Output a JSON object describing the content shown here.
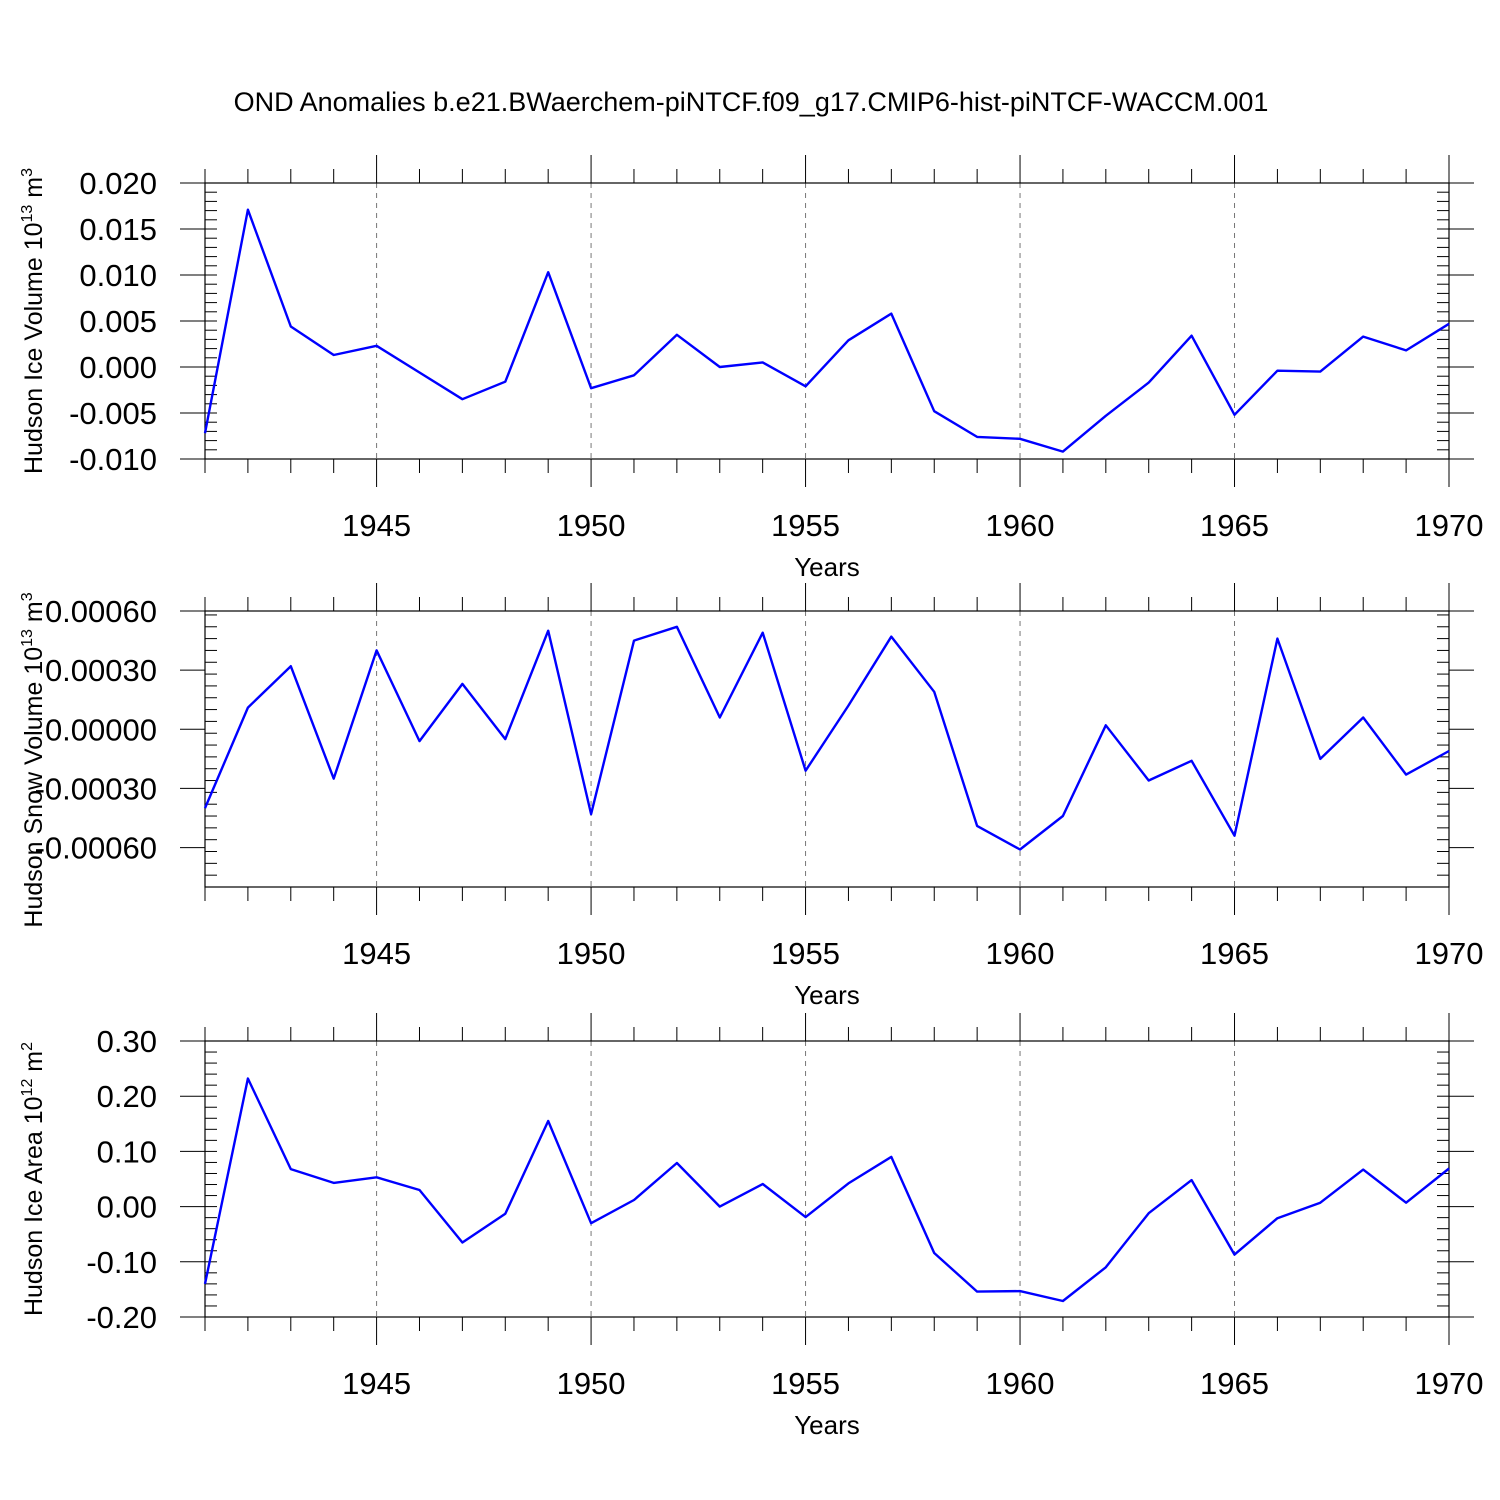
{
  "title": "OND Anomalies b.e21.BWaerchem-piNTCF.f09_g17.CMIP6-hist-piNTCF-WACCM.001",
  "line_color": "#0000ff",
  "chart_data": [
    {
      "type": "line",
      "xlabel": "Years",
      "ylabel": "Hudson Ice Volume 10",
      "ylabel_sup": "13",
      "ylabel_unit": " m",
      "ylabel_unit_sup": "3",
      "xlim": [
        1941,
        1970
      ],
      "ylim": [
        -0.01,
        0.02
      ],
      "yticks": [
        -0.01,
        -0.005,
        0.0,
        0.005,
        0.01,
        0.015,
        0.02
      ],
      "ytick_labels": [
        "-0.010",
        "-0.005",
        "0.000",
        "0.005",
        "0.010",
        "0.015",
        "0.020"
      ],
      "xticks": [
        1945,
        1950,
        1955,
        1960,
        1965,
        1970
      ],
      "xtick_labels": [
        "1945",
        "1950",
        "1955",
        "1960",
        "1965",
        "1970"
      ],
      "x": [
        1941,
        1942,
        1943,
        1944,
        1945,
        1946,
        1947,
        1948,
        1949,
        1950,
        1951,
        1952,
        1953,
        1954,
        1955,
        1956,
        1957,
        1958,
        1959,
        1960,
        1961,
        1962,
        1963,
        1964,
        1965,
        1966,
        1967,
        1968,
        1969,
        1970
      ],
      "series": [
        {
          "values": [
            -0.0072,
            0.0171,
            0.0044,
            0.0013,
            0.0023,
            -0.0006,
            -0.0035,
            -0.0016,
            0.0103,
            -0.0023,
            -0.0009,
            0.0035,
            0.0,
            0.0005,
            -0.0021,
            0.0029,
            0.0058,
            -0.0048,
            -0.0076,
            -0.0078,
            -0.0092,
            -0.0053,
            -0.0017,
            0.0034,
            -0.0052,
            -0.0004,
            -0.0005,
            0.0033,
            0.0018,
            0.0047
          ]
        }
      ]
    },
    {
      "type": "line",
      "xlabel": "Years",
      "ylabel": "Hudson Snow Volume 10",
      "ylabel_sup": "13",
      "ylabel_unit": " m",
      "ylabel_unit_sup": "3",
      "xlim": [
        1941,
        1970
      ],
      "ylim": [
        -0.0008,
        0.0006
      ],
      "yticks": [
        -0.0006,
        -0.0003,
        0.0,
        0.0003,
        0.0006
      ],
      "ytick_labels": [
        "-0.00060",
        "-0.00030",
        "0.00000",
        "0.00030",
        "0.00060"
      ],
      "xticks": [
        1945,
        1950,
        1955,
        1960,
        1965,
        1970
      ],
      "xtick_labels": [
        "1945",
        "1950",
        "1955",
        "1960",
        "1965",
        "1970"
      ],
      "x": [
        1941,
        1942,
        1943,
        1944,
        1945,
        1946,
        1947,
        1948,
        1949,
        1950,
        1951,
        1952,
        1953,
        1954,
        1955,
        1956,
        1957,
        1958,
        1959,
        1960,
        1961,
        1962,
        1963,
        1964,
        1965,
        1966,
        1967,
        1968,
        1969,
        1970
      ],
      "series": [
        {
          "values": [
            -0.0004,
            0.00011,
            0.00032,
            -0.00025,
            0.0004,
            -6e-05,
            0.00023,
            -5e-05,
            0.0005,
            -0.00043,
            0.00045,
            0.00052,
            6e-05,
            0.00049,
            -0.00021,
            0.00012,
            0.00047,
            0.00019,
            -0.00049,
            -0.00061,
            -0.00044,
            2e-05,
            -0.00026,
            -0.00016,
            -0.00054,
            0.00046,
            -0.00015,
            6e-05,
            -0.00023,
            -0.00011
          ]
        }
      ]
    },
    {
      "type": "line",
      "xlabel": "Years",
      "ylabel": "Hudson Ice Area 10",
      "ylabel_sup": "12",
      "ylabel_unit": " m",
      "ylabel_unit_sup": "2",
      "xlim": [
        1941,
        1970
      ],
      "ylim": [
        -0.2,
        0.3
      ],
      "yticks": [
        -0.2,
        -0.1,
        0.0,
        0.1,
        0.2,
        0.3
      ],
      "ytick_labels": [
        "-0.20",
        "-0.10",
        "0.00",
        "0.10",
        "0.20",
        "0.30"
      ],
      "xticks": [
        1945,
        1950,
        1955,
        1960,
        1965,
        1970
      ],
      "xtick_labels": [
        "1945",
        "1950",
        "1955",
        "1960",
        "1965",
        "1970"
      ],
      "x": [
        1941,
        1942,
        1943,
        1944,
        1945,
        1946,
        1947,
        1948,
        1949,
        1950,
        1951,
        1952,
        1953,
        1954,
        1955,
        1956,
        1957,
        1958,
        1959,
        1960,
        1961,
        1962,
        1963,
        1964,
        1965,
        1966,
        1967,
        1968,
        1969,
        1970
      ],
      "series": [
        {
          "values": [
            -0.14,
            0.232,
            0.068,
            0.043,
            0.053,
            0.03,
            -0.065,
            -0.013,
            0.155,
            -0.03,
            0.012,
            0.079,
            0.0,
            0.041,
            -0.019,
            0.042,
            0.09,
            -0.084,
            -0.154,
            -0.153,
            -0.171,
            -0.11,
            -0.012,
            0.048,
            -0.087,
            -0.021,
            0.007,
            0.067,
            0.007,
            0.069
          ]
        }
      ]
    }
  ]
}
